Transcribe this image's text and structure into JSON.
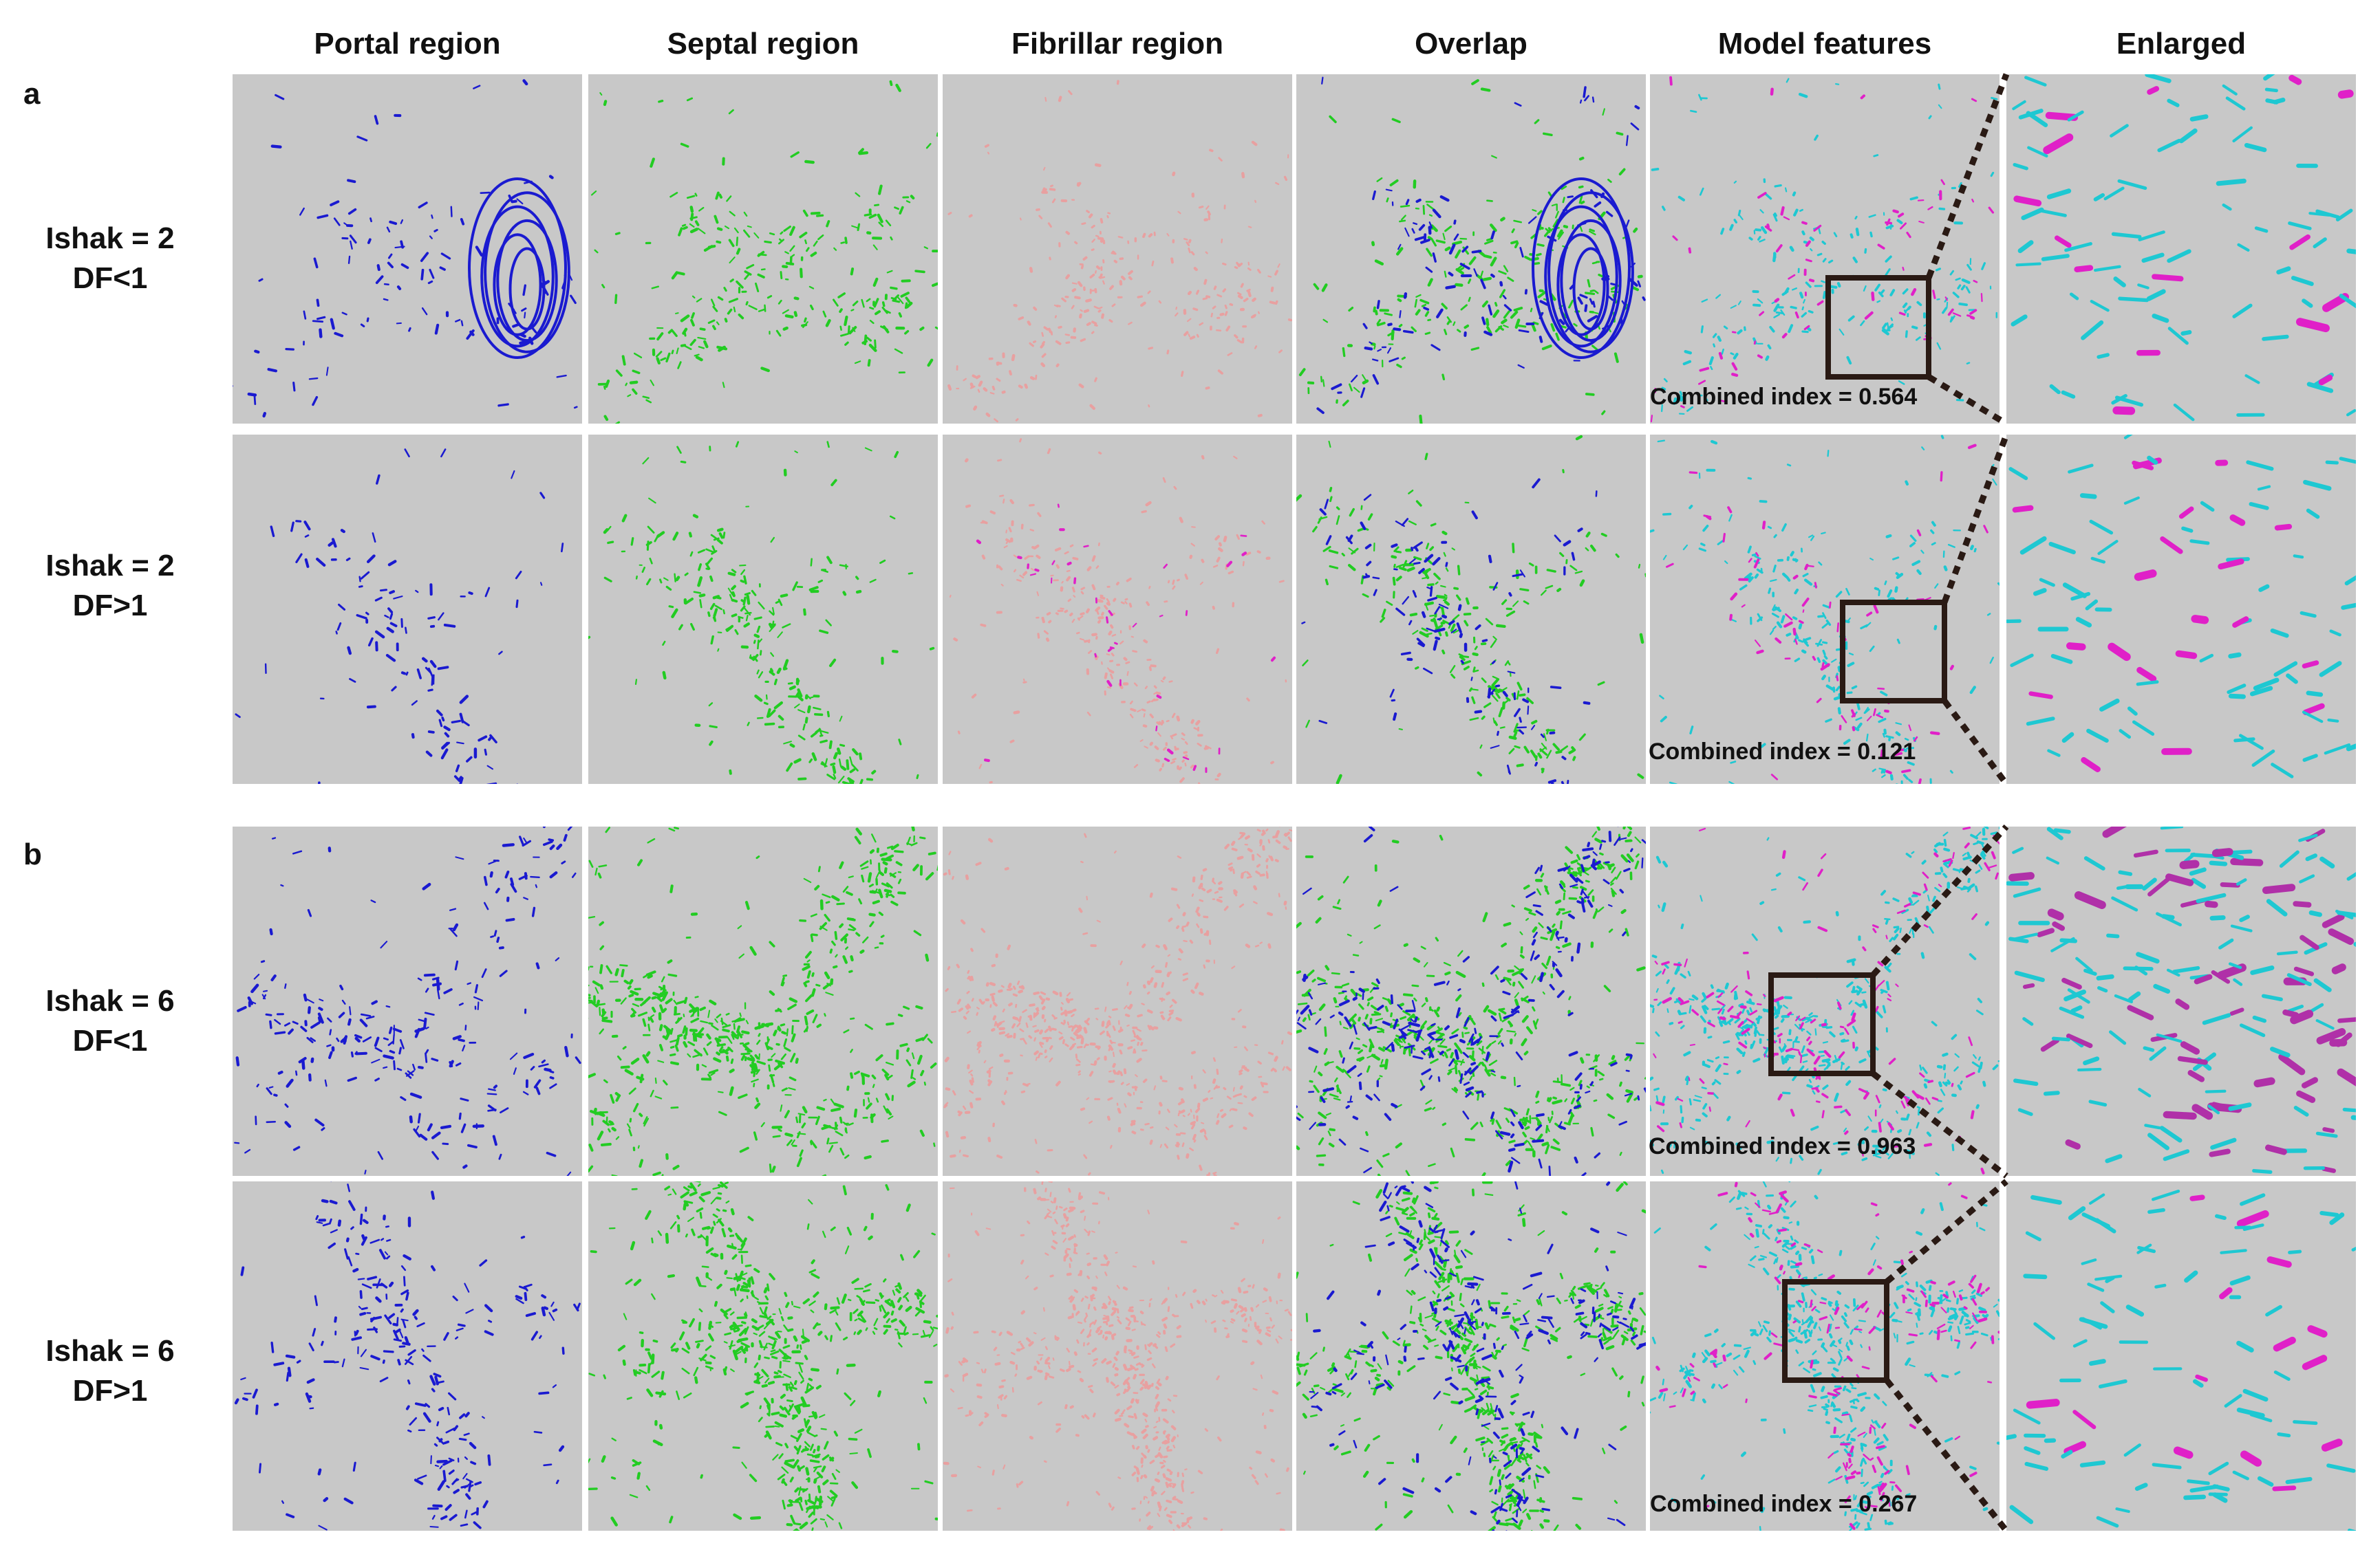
{
  "section_a_label": "a",
  "section_b_label": "b",
  "column_headers": {
    "portal": "Portal region",
    "septal": "Septal region",
    "fibrillar": "Fibrillar region",
    "overlap": "Overlap",
    "model": "Model features",
    "enlarged": "Enlarged"
  },
  "rows": [
    {
      "ishak": "Ishak = 2",
      "df": "DF<1",
      "combined_index": "Combined index = 0.564"
    },
    {
      "ishak": "Ishak = 2",
      "df": "DF>1",
      "combined_index": "Combined index = 0.121"
    },
    {
      "ishak": "Ishak = 6",
      "df": "DF<1",
      "combined_index": "Combined index = 0.963"
    },
    {
      "ishak": "Ishak = 6",
      "df": "DF>1",
      "combined_index": "Combined index = 0.267"
    }
  ],
  "colors": {
    "panel_background": "#c8c8c8",
    "portal": "#1a1ad0",
    "septal": "#22cc22",
    "fibrillar": "#e8a0a0",
    "model_cyan": "#1ec8d2",
    "model_magenta": "#e020c8",
    "enlarged_magenta": "#b030a8",
    "zoom_box": "#2a1a14"
  }
}
